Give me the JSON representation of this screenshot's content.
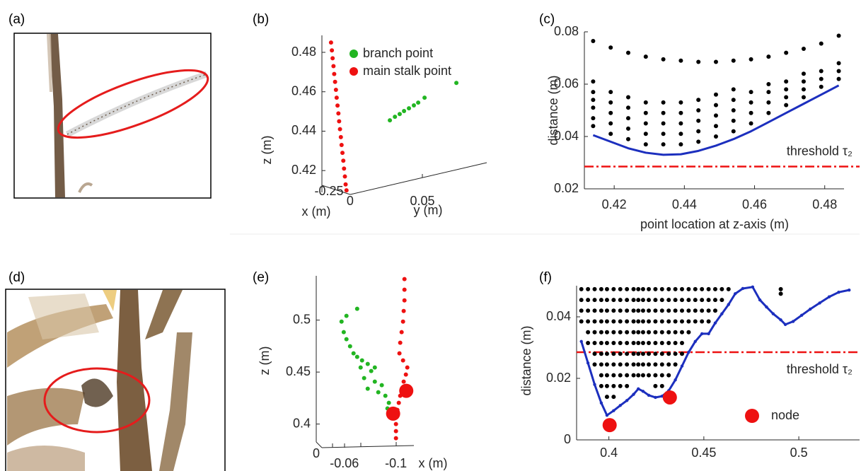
{
  "panel_labels": [
    "(a)",
    "(b)",
    "(c)",
    "(d)",
    "(e)",
    "(f)"
  ],
  "chart_data": [
    {
      "type": "scatter",
      "xlabel": "y (m)",
      "ylabel": "z (m)",
      "depth_label": "x (m)",
      "depth_ticks": [
        -0.25
      ],
      "xlim": [
        -0.02,
        0.095
      ],
      "ylim": [
        0.405,
        0.487
      ],
      "xticks": [
        0,
        0.05
      ],
      "yticks": [
        0.42,
        0.44,
        0.46,
        0.48
      ],
      "legend": "upper left",
      "series": [
        {
          "name": "branch point",
          "color": "#22b522",
          "marker": "small",
          "x": [
            0.0275,
            0.031,
            0.0343,
            0.0373,
            0.0407,
            0.0441,
            0.0471,
            0.0515,
            0.0735
          ],
          "values": [
            0.4455,
            0.4473,
            0.4487,
            0.4502,
            0.4516,
            0.4531,
            0.4545,
            0.457,
            0.4645
          ]
        },
        {
          "name": "main stalk point",
          "color": "#ee1111",
          "marker": "small",
          "x": [
            -0.0132,
            -0.0126,
            -0.0121,
            -0.0115,
            -0.011,
            -0.0104,
            -0.0098,
            -0.0093,
            -0.0087,
            -0.0081,
            -0.0076,
            -0.007,
            -0.0064,
            -0.0059,
            -0.0053,
            -0.0047,
            -0.0042,
            -0.0036,
            -0.0031,
            -0.0025
          ],
          "values": [
            0.485,
            0.481,
            0.477,
            0.473,
            0.469,
            0.465,
            0.461,
            0.457,
            0.453,
            0.449,
            0.445,
            0.441,
            0.437,
            0.433,
            0.429,
            0.425,
            0.421,
            0.417,
            0.413,
            0.41
          ]
        }
      ]
    },
    {
      "type": "scatter",
      "xlabel": "point location at z-axis (m)",
      "ylabel": "distance (m)",
      "xlim": [
        0.4115,
        0.4855
      ],
      "ylim": [
        0.02,
        0.08
      ],
      "xticks": [
        0.42,
        0.44,
        0.46,
        0.48
      ],
      "yticks": [
        0.02,
        0.04,
        0.06,
        0.08
      ],
      "threshold": {
        "value": 0.0285,
        "label": "threshold τ₂",
        "color": "#ee1111"
      },
      "series": [
        {
          "color": "#000000",
          "marker": "small",
          "x": [
            0.414,
            0.419,
            0.424,
            0.429,
            0.434,
            0.439,
            0.444,
            0.449,
            0.454,
            0.459,
            0.464,
            0.469,
            0.474,
            0.479,
            0.484
          ],
          "values": [
            [
              0.0765,
              0.061,
              0.057,
              0.054,
              0.051,
              0.047,
              0.044
            ],
            [
              0.074,
              0.057,
              0.053,
              0.049,
              0.045,
              0.041
            ],
            [
              0.072,
              0.055,
              0.051,
              0.047,
              0.043,
              0.039
            ],
            [
              0.0705,
              0.053,
              0.049,
              0.045,
              0.041,
              0.037
            ],
            [
              0.0695,
              0.053,
              0.049,
              0.045,
              0.041,
              0.037
            ],
            [
              0.069,
              0.053,
              0.049,
              0.045,
              0.041,
              0.037
            ],
            [
              0.0685,
              0.054,
              0.05,
              0.046,
              0.042,
              0.038
            ],
            [
              0.0685,
              0.056,
              0.052,
              0.048,
              0.044,
              0.04
            ],
            [
              0.069,
              0.058,
              0.054,
              0.05,
              0.046,
              0.042
            ],
            [
              0.0695,
              0.057,
              0.053,
              0.049,
              0.045
            ],
            [
              0.0705,
              0.06,
              0.057,
              0.053,
              0.049
            ],
            [
              0.072,
              0.061,
              0.058,
              0.055,
              0.052
            ],
            [
              0.0735,
              0.064,
              0.061,
              0.058,
              0.055
            ],
            [
              0.0755,
              0.065,
              0.062,
              0.059
            ],
            [
              0.0785,
              0.068,
              0.065,
              0.062
            ]
          ]
        },
        {
          "style": "line",
          "color": "#1c2fbe",
          "x": [
            0.414,
            0.419,
            0.424,
            0.429,
            0.434,
            0.439,
            0.444,
            0.449,
            0.454,
            0.459,
            0.464,
            0.469,
            0.474,
            0.479,
            0.484
          ],
          "values": [
            0.0405,
            0.038,
            0.0355,
            0.0338,
            0.033,
            0.0332,
            0.0345,
            0.0365,
            0.039,
            0.042,
            0.0455,
            0.049,
            0.0525,
            0.056,
            0.0595
          ]
        }
      ]
    },
    {
      "type": "scatter",
      "xlabel": "x (m)",
      "ylabel": "z (m)",
      "depth_ticks": [
        0
      ],
      "xlim": [
        -0.025,
        -0.115
      ],
      "ylim": [
        0.38,
        0.545
      ],
      "xticks": [
        -0.06,
        -0.1
      ],
      "yticks": [
        0.4,
        0.45,
        0.5
      ],
      "series": [
        {
          "color": "#22b522",
          "marker": "small",
          "x": [
            -0.0699,
            -0.0616,
            -0.0578,
            -0.0595,
            -0.0616,
            -0.0644,
            -0.0671,
            -0.0699,
            -0.0737,
            -0.0781,
            -0.0726,
            -0.0808,
            -0.0836,
            -0.0753,
            -0.0836,
            -0.089,
            -0.0781,
            -0.0863,
            -0.0918,
            -0.0945,
            -0.0934
          ],
          "values": [
            0.5109,
            0.5041,
            0.4986,
            0.4884,
            0.4816,
            0.4748,
            0.468,
            0.4646,
            0.4612,
            0.4578,
            0.4544,
            0.451,
            0.4544,
            0.4442,
            0.4408,
            0.4374,
            0.434,
            0.4306,
            0.4272,
            0.4204,
            0.415
          ]
        },
        {
          "color": "#ee1111",
          "marker": "small",
          "x": [
            -0.1066,
            -0.1066,
            -0.1066,
            -0.106,
            -0.1055,
            -0.1044,
            -0.1033,
            -0.1027,
            -0.1055,
            -0.1088,
            -0.1077,
            -0.106,
            -0.1049,
            -0.1033,
            -0.1022,
            -0.1011,
            -0.1005,
            -0.1,
            -0.1,
            -0.1
          ],
          "values": [
            0.5395,
            0.5293,
            0.519,
            0.5088,
            0.4986,
            0.4884,
            0.4782,
            0.468,
            0.4612,
            0.4544,
            0.4476,
            0.4408,
            0.434,
            0.4272,
            0.4204,
            0.4136,
            0.4068,
            0.4,
            0.3932,
            0.3864
          ]
        },
        {
          "color": "#ee1111",
          "marker": "large",
          "x": [
            -0.108,
            -0.0978
          ],
          "values": [
            0.432,
            0.41
          ]
        }
      ]
    },
    {
      "type": "scatter",
      "ylabel": "distance (m)",
      "xlim": [
        0.383,
        0.532
      ],
      "ylim": [
        0,
        0.05
      ],
      "xticks": [
        0.4,
        0.45,
        0.5
      ],
      "yticks": [
        0,
        0.02,
        0.04
      ],
      "threshold": {
        "value": 0.0285,
        "label": "threshold τ₂",
        "color": "#ee1111"
      },
      "legend": "lower right",
      "series": [
        {
          "color": "#000000",
          "marker": "small",
          "x": [
            0.3855,
            0.389,
            0.3925,
            0.396,
            0.399,
            0.4025,
            0.406,
            0.4095,
            0.413,
            0.4155,
            0.418,
            0.421,
            0.4245,
            0.428,
            0.4315,
            0.435,
            0.4385,
            0.442,
            0.4455,
            0.449,
            0.4525,
            0.456,
            0.4595,
            0.463,
            0.4905
          ],
          "values": [
            [
              0.049,
              0.0455,
              0.042,
              0.0385
            ],
            [
              0.049,
              0.0455,
              0.042,
              0.0385,
              0.035,
              0.0315
            ],
            [
              0.049,
              0.0455,
              0.042,
              0.0385,
              0.035,
              0.0315,
              0.028,
              0.0245
            ],
            [
              0.049,
              0.0455,
              0.042,
              0.0385,
              0.035,
              0.0315,
              0.028,
              0.0245,
              0.021,
              0.0175
            ],
            [
              0.049,
              0.0455,
              0.042,
              0.0385,
              0.035,
              0.0315,
              0.028,
              0.0245,
              0.021,
              0.0175,
              0.014
            ],
            [
              0.049,
              0.0455,
              0.042,
              0.0385,
              0.035,
              0.0315,
              0.028,
              0.0245,
              0.021,
              0.0175,
              0.014
            ],
            [
              0.049,
              0.0455,
              0.042,
              0.0385,
              0.035,
              0.0315,
              0.028,
              0.0245,
              0.021,
              0.0175
            ],
            [
              0.049,
              0.0455,
              0.042,
              0.0385,
              0.035,
              0.0315,
              0.028,
              0.0245,
              0.021,
              0.0175
            ],
            [
              0.049,
              0.0455,
              0.042,
              0.0385,
              0.035,
              0.0315,
              0.028,
              0.0245,
              0.021
            ],
            [
              0.049,
              0.0455,
              0.042,
              0.0385,
              0.035,
              0.0315,
              0.028,
              0.0245,
              0.021
            ],
            [
              0.049,
              0.0455,
              0.042,
              0.0385,
              0.035,
              0.0315,
              0.028,
              0.0245,
              0.021
            ],
            [
              0.049,
              0.0455,
              0.042,
              0.0385,
              0.035,
              0.0315,
              0.028,
              0.0245,
              0.021
            ],
            [
              0.049,
              0.0455,
              0.042,
              0.0385,
              0.035,
              0.0315,
              0.028,
              0.0245,
              0.021,
              0.0175
            ],
            [
              0.049,
              0.0455,
              0.042,
              0.0385,
              0.035,
              0.0315,
              0.028,
              0.0245,
              0.021,
              0.0175
            ],
            [
              0.049,
              0.0455,
              0.042,
              0.0385,
              0.035,
              0.0315,
              0.028,
              0.0245,
              0.021
            ],
            [
              0.049,
              0.0455,
              0.042,
              0.0385,
              0.035,
              0.0315,
              0.028,
              0.0245
            ],
            [
              0.049,
              0.0455,
              0.042,
              0.0385,
              0.035,
              0.0315,
              0.028
            ],
            [
              0.049,
              0.0455,
              0.042,
              0.0385,
              0.035
            ],
            [
              0.049,
              0.0455,
              0.042,
              0.0385
            ],
            [
              0.049,
              0.0455,
              0.042,
              0.0385
            ],
            [
              0.049,
              0.0455,
              0.042,
              0.0385
            ],
            [
              0.049,
              0.0455,
              0.042
            ],
            [
              0.049,
              0.0455
            ],
            [
              0.049
            ],
            [
              0.049,
              0.0475
            ]
          ]
        },
        {
          "style": "line",
          "line_markers": true,
          "color": "#1c2fbe",
          "x": [
            0.3855,
            0.389,
            0.3925,
            0.396,
            0.399,
            0.4025,
            0.406,
            0.4095,
            0.413,
            0.4155,
            0.418,
            0.421,
            0.4245,
            0.428,
            0.4315,
            0.435,
            0.4385,
            0.442,
            0.4455,
            0.449,
            0.4525,
            0.456,
            0.4595,
            0.463,
            0.4665,
            0.4705,
            0.4757,
            0.4795,
            0.483,
            0.4865,
            0.4905,
            0.4929,
            0.497,
            0.5015,
            0.506,
            0.511,
            0.516,
            0.521,
            0.5265
          ],
          "values": [
            0.032,
            0.025,
            0.018,
            0.012,
            0.008,
            0.0095,
            0.0112,
            0.0128,
            0.0148,
            0.0166,
            0.0158,
            0.0145,
            0.0138,
            0.0142,
            0.016,
            0.0195,
            0.024,
            0.0285,
            0.032,
            0.0345,
            0.0345,
            0.038,
            0.041,
            0.044,
            0.0475,
            0.0492,
            0.0497,
            0.0455,
            0.0432,
            0.041,
            0.039,
            0.0375,
            0.0385,
            0.0405,
            0.0425,
            0.0445,
            0.0465,
            0.048,
            0.0487
          ]
        },
        {
          "name": "node",
          "color": "#ee1111",
          "marker": "large",
          "x": [
            0.4004,
            0.4321
          ],
          "values": [
            0.0048,
            0.0138
          ]
        }
      ]
    }
  ]
}
